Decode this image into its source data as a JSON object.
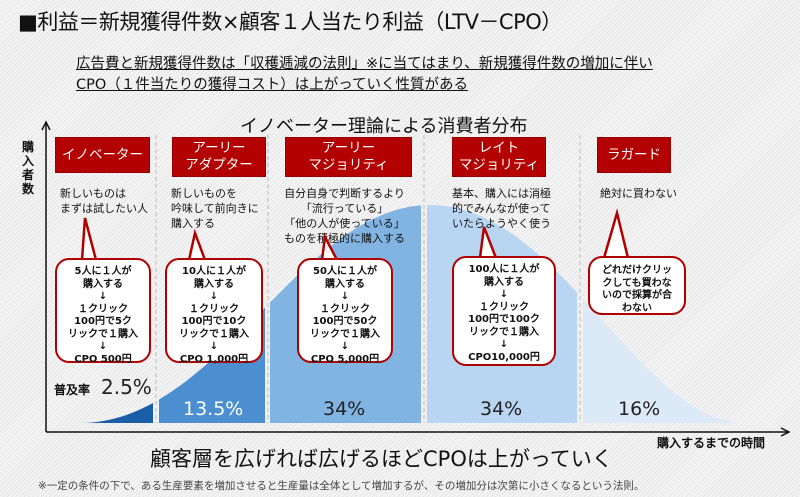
{
  "title": "■利益＝新規獲得件数×顧客１人当たり利益（LTV－CPO）",
  "subtitle": [
    "広告費と新規獲得件数は「収穫逓減の法則」※に当てはまり、新規獲得件数の増加に伴い",
    "CPO（１件当たりの獲得コスト）は上がっていく性質がある"
  ],
  "chart_title": "イノベーター理論による消費者分布",
  "y_axis_label": "購入者数",
  "x_axis_label": "購入するまでの時間",
  "segments": [
    {
      "label": "イノベーター",
      "desc": "新しいものは\nまずは試したい人",
      "bubble": "5人に１人が\n購入する\n↓\n１クリック\n100円で5ク\nリックで１購入\n↓\nCPO 500円",
      "share_prefix": "普及率",
      "share": "2.5%",
      "color": "#1a5ea8"
    },
    {
      "label": "アーリー\nアダプター",
      "desc": "新しいものを\n吟味して前向きに\n購入する",
      "bubble": "10人に１人が\n購入する\n↓\n１クリック\n100円で10ク\nリックで１購入\n↓\nCPO 1,000円",
      "share": "13.5%",
      "color": "#4b8fd0"
    },
    {
      "label": "アーリー\nマジョリティ",
      "desc": "自分自身で判断するより\n「流行っている」\n「他の人が使っている」\nものを積極的に購入する",
      "bubble": "50人に１人が\n購入する\n↓\n１クリック\n100円で50ク\nリックで１購入\n↓\nCPO 5,000円",
      "share": "34%",
      "color": "#82b4e2"
    },
    {
      "label": "レイト\nマジョリティ",
      "desc": "基本、購入には消極\n的でみんなが使って\nいたらようやく使う",
      "bubble": "100人に１人が\n購入する\n↓\n１クリック\n100円で100ク\nリックで１購入\n↓\nCPO10,000円",
      "share": "34%",
      "color": "#b8d6f1"
    },
    {
      "label": "ラガード",
      "desc": "絶対に買わない",
      "bubble": "どれだけクリッ\nクしても買わな\nいので採算が合\nわない",
      "share": "16%",
      "color": "#dce9f6"
    }
  ],
  "conclusion": "顧客層を広げれば広げるほどCPOは上がっていく",
  "footnote": "※一定の条件の下で、ある生産要素を増加させると生産量は全体として増加するが、その増加分は次第に小さくなるという法則。",
  "accent": "#b30000"
}
